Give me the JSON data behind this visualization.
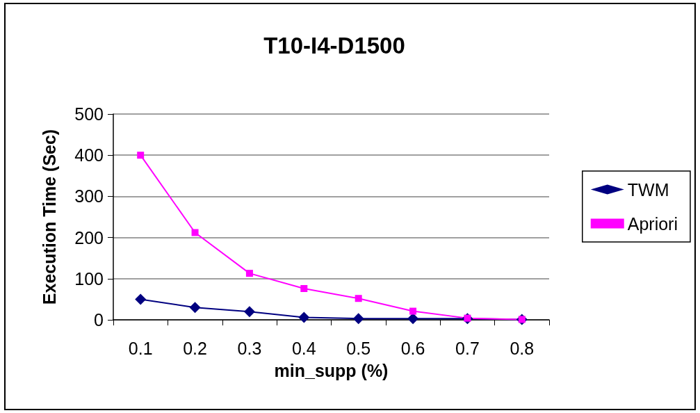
{
  "chart_data": {
    "type": "line",
    "title": "T10-I4-D1500",
    "xlabel": "min_supp (%)",
    "ylabel": "Execution Time (Sec)",
    "categories": [
      "0.1",
      "0.2",
      "0.3",
      "0.4",
      "0.5",
      "0.6",
      "0.7",
      "0.8"
    ],
    "series": [
      {
        "name": "TWM",
        "color": "#000080",
        "marker": "diamond",
        "values": [
          50,
          30,
          20,
          6,
          3,
          3,
          3,
          1
        ]
      },
      {
        "name": "Apriori",
        "color": "#ff00ff",
        "marker": "square",
        "values": [
          400,
          212,
          113,
          76,
          52,
          21,
          4,
          1
        ]
      }
    ],
    "ylim": [
      0,
      500
    ],
    "yticks": [
      0,
      100,
      200,
      300,
      400,
      500
    ],
    "grid": "y",
    "legend": "right",
    "line_style": "solid"
  }
}
